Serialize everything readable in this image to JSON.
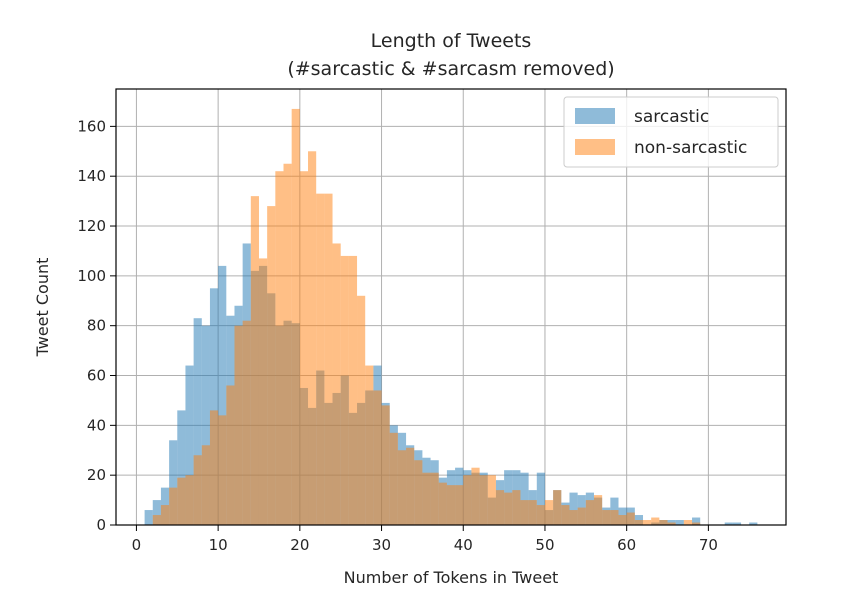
{
  "chart_data": {
    "type": "bar",
    "subtype": "overlapping-histogram",
    "title": "Length of Tweets",
    "subtitle": "(#sarcastic & #sarcasm removed)",
    "xlabel": "Number of Tokens in Tweet",
    "ylabel": "Tweet Count",
    "xlim": [
      -2.5,
      79.5
    ],
    "ylim": [
      0,
      175
    ],
    "xticks": [
      0,
      10,
      20,
      30,
      40,
      50,
      60,
      70
    ],
    "yticks": [
      0,
      20,
      40,
      60,
      80,
      100,
      120,
      140,
      160
    ],
    "grid": true,
    "legend_position": "top-right",
    "bin_width": 1,
    "series": [
      {
        "name": "sarcastic",
        "color": "#1f77b4",
        "opacity": 0.5,
        "bin_starts": [
          1,
          2,
          3,
          4,
          5,
          6,
          7,
          8,
          9,
          10,
          11,
          12,
          13,
          14,
          15,
          16,
          17,
          18,
          19,
          20,
          21,
          22,
          23,
          24,
          25,
          26,
          27,
          28,
          29,
          30,
          31,
          32,
          33,
          34,
          35,
          36,
          37,
          38,
          39,
          40,
          41,
          42,
          43,
          44,
          45,
          46,
          47,
          48,
          49,
          50,
          51,
          52,
          53,
          54,
          55,
          56,
          57,
          58,
          59,
          60,
          61,
          62,
          63,
          64,
          65,
          66,
          67,
          68,
          69,
          70,
          71,
          72,
          73,
          74,
          75
        ],
        "counts": [
          6,
          10,
          15,
          34,
          46,
          64,
          83,
          80,
          95,
          104,
          84,
          88,
          113,
          102,
          104,
          93,
          80,
          82,
          81,
          55,
          47,
          62,
          49,
          53,
          60,
          45,
          49,
          54,
          64,
          49,
          40,
          37,
          32,
          30,
          27,
          26,
          19,
          22,
          23,
          22,
          21,
          21,
          11,
          18,
          22,
          22,
          21,
          14,
          21,
          6,
          14,
          9,
          13,
          12,
          13,
          11,
          7,
          11,
          7,
          7,
          4,
          0,
          1,
          2,
          2,
          2,
          0,
          3,
          0,
          0,
          0,
          1,
          1,
          0,
          1
        ]
      },
      {
        "name": "non-sarcastic",
        "color": "#ff7f0e",
        "opacity": 0.5,
        "bin_starts": [
          2,
          3,
          4,
          5,
          6,
          7,
          8,
          9,
          10,
          11,
          12,
          13,
          14,
          15,
          16,
          17,
          18,
          19,
          20,
          21,
          22,
          23,
          24,
          25,
          26,
          27,
          28,
          29,
          30,
          31,
          32,
          33,
          34,
          35,
          36,
          37,
          38,
          39,
          40,
          41,
          42,
          43,
          44,
          45,
          46,
          47,
          48,
          49,
          50,
          51,
          52,
          53,
          54,
          55,
          56,
          57,
          58,
          59,
          60,
          61,
          62,
          63,
          64,
          65,
          66,
          67,
          68
        ],
        "counts": [
          4,
          8,
          15,
          19,
          20,
          28,
          32,
          46,
          44,
          56,
          80,
          82,
          132,
          107,
          128,
          142,
          145,
          167,
          142,
          150,
          133,
          133,
          113,
          108,
          108,
          92,
          64,
          54,
          48,
          37,
          30,
          31,
          26,
          21,
          21,
          17,
          16,
          16,
          20,
          23,
          20,
          20,
          14,
          13,
          14,
          10,
          10,
          8,
          10,
          14,
          8,
          6,
          7,
          10,
          12,
          6,
          6,
          4,
          5,
          2,
          2,
          3,
          2,
          1,
          0,
          2,
          1
        ]
      }
    ]
  }
}
